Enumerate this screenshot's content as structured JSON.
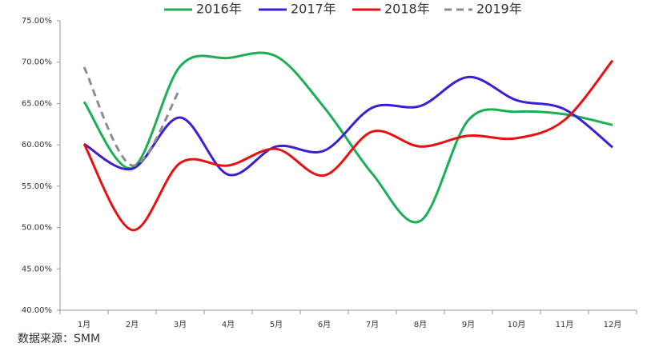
{
  "chart_data": {
    "type": "line",
    "categories": [
      "1月",
      "2月",
      "3月",
      "4月",
      "5月",
      "6月",
      "7月",
      "8月",
      "9月",
      "10月",
      "11月",
      "12月"
    ],
    "series": [
      {
        "name": "2016年",
        "color": "#1aaf54",
        "values": [
          65.2,
          57.2,
          69.5,
          70.5,
          70.7,
          64.5,
          56.5,
          50.8,
          63.0,
          64.0,
          63.7,
          62.4
        ]
      },
      {
        "name": "2017年",
        "color": "#3a1fd6",
        "values": [
          60.1,
          57.1,
          63.3,
          56.4,
          59.8,
          59.3,
          64.5,
          64.7,
          68.2,
          65.4,
          64.3,
          59.7
        ]
      },
      {
        "name": "2018年",
        "color": "#e81010",
        "values": [
          60.1,
          49.7,
          57.8,
          57.5,
          59.5,
          56.3,
          61.6,
          59.8,
          61.1,
          60.8,
          63.0,
          70.2
        ]
      },
      {
        "name": "2019年",
        "color": "#8c8c8c",
        "dashed": true,
        "values": [
          69.4,
          57.5,
          66.8,
          null,
          null,
          null,
          null,
          null,
          null,
          null,
          null,
          null
        ]
      }
    ],
    "ylim": [
      40,
      75
    ],
    "yticks": [
      {
        "value": 40,
        "label": "40.00%"
      },
      {
        "value": 45,
        "label": "45.00%"
      },
      {
        "value": 50,
        "label": "50.00%"
      },
      {
        "value": 55,
        "label": "55.00%"
      },
      {
        "value": 60,
        "label": "60.00%"
      },
      {
        "value": 65,
        "label": "65.00%"
      },
      {
        "value": 70,
        "label": "70.00%"
      },
      {
        "value": 75,
        "label": "75.00%"
      }
    ],
    "legend": "top",
    "source": "数据来源：SMM"
  }
}
